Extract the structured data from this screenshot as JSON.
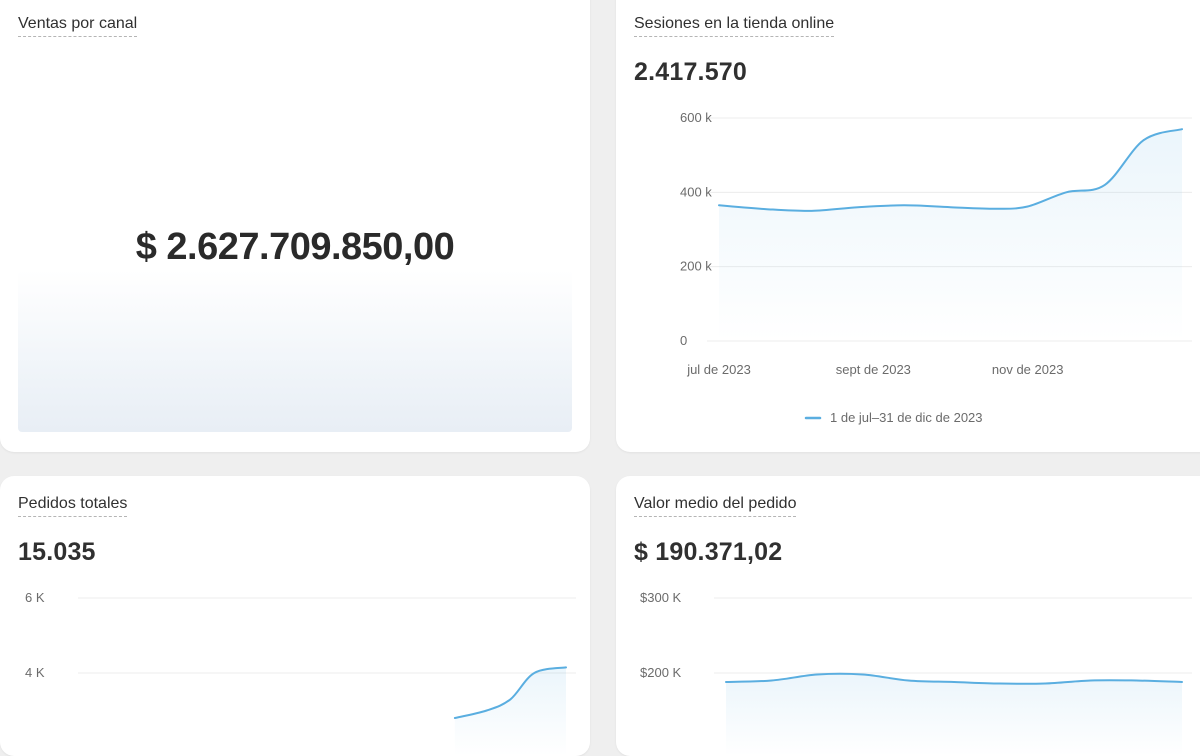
{
  "cards": {
    "ventas": {
      "title": "Ventas por canal",
      "value": "$ 2.627.709.850,00"
    },
    "sesiones": {
      "title": "Sesiones en la tienda online",
      "value": "2.417.570",
      "legend": "1 de jul–31 de dic de 2023"
    },
    "pedidos": {
      "title": "Pedidos totales",
      "value": "15.035"
    },
    "valor": {
      "title": "Valor medio del pedido",
      "value": "$ 190.371,02"
    }
  },
  "colors": {
    "line": "#5aaee0",
    "grid": "#ececec",
    "background": "#efefef",
    "card": "#ffffff"
  },
  "chart_data": [
    {
      "id": "sesiones",
      "type": "area",
      "title": "Sesiones en la tienda online",
      "ylim": [
        0,
        600000
      ],
      "yticks": [
        0,
        200000,
        400000,
        600000
      ],
      "ytick_labels": [
        "0",
        "200 k",
        "400 k",
        "600 k"
      ],
      "xlim": [
        0,
        6
      ],
      "xticks": [
        0,
        2,
        4
      ],
      "xtick_labels": [
        "jul de 2023",
        "sept de 2023",
        "nov de 2023"
      ],
      "legend": "top-bottom",
      "series": [
        {
          "name": "1 de jul–31 de dic de 2023",
          "x": [
            0,
            0.6,
            1.2,
            1.8,
            2.4,
            3.0,
            3.6,
            4.0,
            4.5,
            5.0,
            5.5,
            6.0
          ],
          "values": [
            365000,
            355000,
            350000,
            360000,
            365000,
            360000,
            356000,
            362000,
            400000,
            420000,
            540000,
            570000
          ]
        }
      ]
    },
    {
      "id": "pedidos",
      "type": "area",
      "title": "Pedidos totales",
      "ylim": [
        0,
        6000
      ],
      "yticks": [
        4000,
        6000
      ],
      "ytick_labels": [
        "4 K",
        "6 K"
      ],
      "series": [
        {
          "x": [
            0,
            3.6,
            4.0,
            4.3,
            4.6,
            5.0,
            5.3,
            5.6,
            6.0
          ],
          "values": [
            null,
            null,
            null,
            null,
            2800,
            3000,
            3300,
            4000,
            4150
          ]
        }
      ]
    },
    {
      "id": "valor",
      "type": "area",
      "title": "Valor medio del pedido",
      "ylim": [
        0,
        300000
      ],
      "yticks": [
        200000,
        300000
      ],
      "ytick_labels": [
        "$200 K",
        "$300 K"
      ],
      "series": [
        {
          "x": [
            0,
            0.6,
            1.2,
            1.8,
            2.4,
            3.0,
            3.6,
            4.2,
            4.8,
            5.4,
            6.0
          ],
          "values": [
            188000,
            190000,
            198000,
            198000,
            190000,
            188000,
            186000,
            186000,
            190000,
            190000,
            188000
          ]
        }
      ]
    }
  ]
}
